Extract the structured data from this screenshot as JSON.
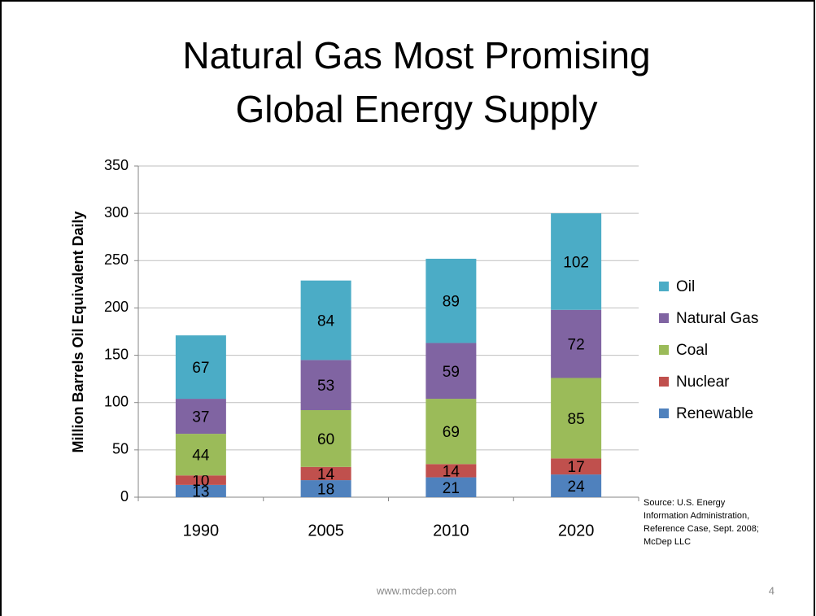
{
  "chart_data": {
    "type": "stacked_bar",
    "title": [
      "Natural Gas Most Promising",
      "Global Energy Supply"
    ],
    "y_label": "Million Barrels Oil Equivalent Daily",
    "categories": [
      "1990",
      "2005",
      "2010",
      "2020"
    ],
    "series": [
      {
        "name": "Renewable",
        "color": "#4f81bd",
        "values": [
          13,
          18,
          21,
          24
        ]
      },
      {
        "name": "Nuclear",
        "color": "#c0504d",
        "values": [
          10,
          14,
          14,
          17
        ]
      },
      {
        "name": "Coal",
        "color": "#9bbb59",
        "values": [
          44,
          60,
          69,
          85
        ]
      },
      {
        "name": "Natural Gas",
        "color": "#8064a2",
        "values": [
          37,
          53,
          59,
          72
        ]
      },
      {
        "name": "Oil",
        "color": "#4bacc6",
        "values": [
          67,
          84,
          89,
          102
        ]
      }
    ],
    "ylim": [
      0,
      350
    ],
    "yticks": [
      0,
      50,
      100,
      150,
      200,
      250,
      300,
      350
    ],
    "grid": true,
    "legend": "right",
    "source": [
      "Source:  U.S. Energy",
      "Information Administration,",
      "Reference Case, Sept. 2008;",
      "McDep LLC"
    ],
    "footer": "www.mcdep.com",
    "page_number": 4
  }
}
